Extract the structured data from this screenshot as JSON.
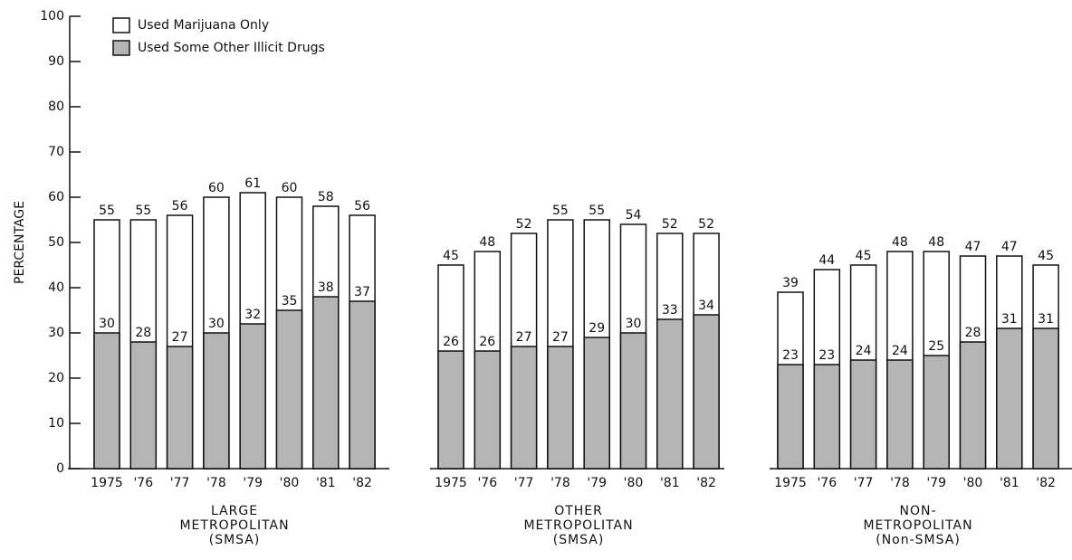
{
  "chart_data": {
    "type": "bar",
    "stacked": false,
    "ylabel": "PERCENTAGE",
    "ylim": [
      0,
      100
    ],
    "yticks": [
      0,
      10,
      20,
      30,
      40,
      50,
      60,
      70,
      80,
      90,
      100
    ],
    "series": [
      {
        "name": "Used Marijuana Only",
        "color": "#ffffff",
        "values": [
          [
            55,
            55,
            56,
            60,
            61,
            60,
            58,
            56
          ],
          [
            45,
            48,
            52,
            55,
            55,
            54,
            52,
            52
          ],
          [
            39,
            44,
            45,
            48,
            48,
            47,
            47,
            45
          ]
        ]
      },
      {
        "name": "Used Some Other Illicit Drugs",
        "color": "#b5b5b5",
        "values": [
          [
            30,
            28,
            27,
            30,
            32,
            35,
            38,
            37
          ],
          [
            26,
            26,
            27,
            27,
            29,
            30,
            33,
            34
          ],
          [
            23,
            23,
            24,
            24,
            25,
            28,
            31,
            31
          ]
        ]
      }
    ],
    "panels": [
      {
        "label": [
          "LARGE",
          "METROPOLITAN",
          "(SMSA)"
        ],
        "categories": [
          "1975",
          "'76",
          "'77",
          "'78",
          "'79",
          "'80",
          "'81",
          "'82"
        ]
      },
      {
        "label": [
          "OTHER",
          "METROPOLITAN",
          "(SMSA)"
        ],
        "categories": [
          "1975",
          "'76",
          "'77",
          "'78",
          "'79",
          "'80",
          "'81",
          "'82"
        ]
      },
      {
        "label": [
          "NON-",
          "METROPOLITAN",
          "(Non-SMSA)"
        ],
        "categories": [
          "1975",
          "'76",
          "'77",
          "'78",
          "'79",
          "'80",
          "'81",
          "'82"
        ]
      }
    ]
  }
}
